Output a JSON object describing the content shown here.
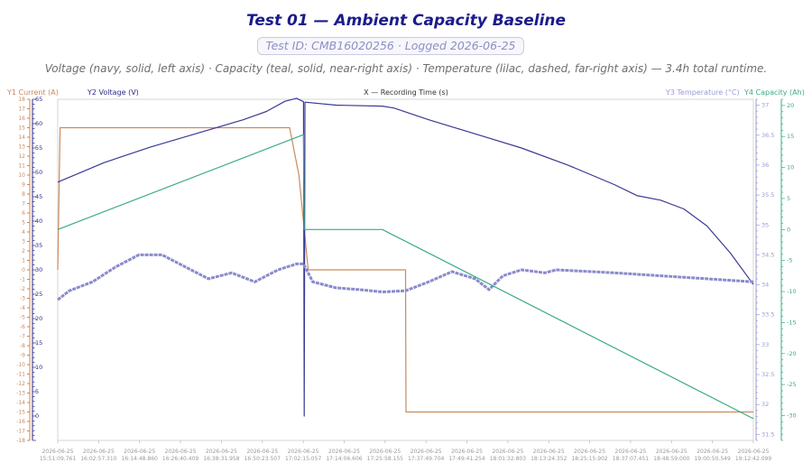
{
  "header": {
    "title": "Test 01 — Ambient Capacity Baseline",
    "test_id_badge": "Test ID: CMB16020256 · Logged 2026-06-25",
    "subtitle": "Voltage (navy, solid, left axis) · Capacity (teal, solid, near-right axis) · Temperature (lilac, dashed, far-right axis) — 3.4h total runtime."
  },
  "chart_data": {
    "type": "line",
    "x_label": "X — Recording Time (s)",
    "x_ticks": [
      "2026-06-25 15:51:09.761",
      "2026-06-25 16:02:57.310",
      "2026-06-25 16:14:48.860",
      "2026-06-25 16:26:40.409",
      "2026-06-25 16:38:31.958",
      "2026-06-25 16:50:23.507",
      "2026-06-25 17:02:15.057",
      "2026-06-25 17:14:06.606",
      "2026-06-25 17:25:58.155",
      "2026-06-25 17:37:49.704",
      "2026-06-25 17:49:41.254",
      "2026-06-25 18:01:32.803",
      "2026-06-25 18:13:24.352",
      "2026-06-25 18:25:15.902",
      "2026-06-25 18:37:07.451",
      "2026-06-25 18:48:59.000",
      "2026-06-25 19:00:50.549",
      "2026-06-25 19:12:42.099"
    ],
    "y1_axis": {
      "label": "Y1 Current (A)",
      "min": -18,
      "max": 18,
      "step": 1,
      "color": "#c98a5e"
    },
    "y2_axis": {
      "label": "Y2 Voltage (V)",
      "min": -5,
      "max": 65,
      "ticks": [
        0,
        5,
        10,
        15,
        20,
        25,
        30,
        35,
        40,
        45,
        50,
        55,
        60,
        65
      ],
      "color": "#2b2b8c"
    },
    "y3_axis": {
      "label": "Y3 Temperature (°C)",
      "min": 31.4,
      "max": 37.1,
      "ticks": [
        31.5,
        32,
        32.5,
        33,
        33.5,
        34,
        34.5,
        35,
        35.5,
        36,
        36.5,
        37
      ],
      "color": "#9a9ad6"
    },
    "y4_axis": {
      "label": "Y4 Capacity (Ah)",
      "min": -34,
      "max": 21,
      "ticks": [
        -30,
        -25,
        -20,
        -15,
        -10,
        -5,
        0,
        5,
        10,
        15,
        20
      ],
      "color": "#3daa86"
    },
    "series": [
      {
        "name": "Y1 Current (A)",
        "axis": "y1",
        "color": "#c98a5e",
        "points": [
          [
            0,
            0
          ],
          [
            1,
            15
          ],
          [
            100,
            15
          ],
          [
            104,
            10
          ],
          [
            108,
            0
          ],
          [
            150,
            0
          ],
          [
            150.2,
            -15
          ],
          [
            300,
            -15
          ]
        ]
      },
      {
        "name": "Y2 Voltage (V)",
        "axis": "y2",
        "color": "#3a3a94",
        "points": [
          [
            0,
            48
          ],
          [
            20,
            52
          ],
          [
            40,
            55.2
          ],
          [
            60,
            58
          ],
          [
            80,
            60.8
          ],
          [
            90,
            62.5
          ],
          [
            98,
            64.6
          ],
          [
            103,
            65.2
          ],
          [
            106,
            64.5
          ],
          [
            106.3,
            0
          ],
          [
            106.6,
            64.4
          ],
          [
            120,
            63.8
          ],
          [
            140,
            63.6
          ],
          [
            145,
            63.2
          ],
          [
            160,
            60.8
          ],
          [
            180,
            57.9
          ],
          [
            200,
            55
          ],
          [
            220,
            51.5
          ],
          [
            240,
            47.5
          ],
          [
            250,
            45.2
          ],
          [
            260,
            44.3
          ],
          [
            270,
            42.5
          ],
          [
            280,
            39
          ],
          [
            290,
            33.5
          ],
          [
            300,
            27
          ]
        ]
      },
      {
        "name": "Y3 Temperature (°C)",
        "axis": "y3",
        "color": "#8a8acc",
        "points": [
          [
            0,
            33.75
          ],
          [
            5,
            33.9
          ],
          [
            15,
            34.05
          ],
          [
            25,
            34.3
          ],
          [
            35,
            34.5
          ],
          [
            45,
            34.5
          ],
          [
            55,
            34.3
          ],
          [
            65,
            34.1
          ],
          [
            75,
            34.2
          ],
          [
            85,
            34.05
          ],
          [
            95,
            34.25
          ],
          [
            103,
            34.35
          ],
          [
            106,
            34.35
          ],
          [
            110,
            34.05
          ],
          [
            120,
            33.95
          ],
          [
            130,
            33.92
          ],
          [
            140,
            33.88
          ],
          [
            150,
            33.9
          ],
          [
            160,
            34.05
          ],
          [
            170,
            34.22
          ],
          [
            180,
            34.1
          ],
          [
            186,
            33.92
          ],
          [
            192,
            34.15
          ],
          [
            200,
            34.25
          ],
          [
            210,
            34.2
          ],
          [
            215,
            34.25
          ],
          [
            240,
            34.2
          ],
          [
            260,
            34.15
          ],
          [
            280,
            34.1
          ],
          [
            300,
            34.05
          ]
        ]
      },
      {
        "name": "Y4 Capacity (Ah)",
        "axis": "y4",
        "color": "#3daa86",
        "points": [
          [
            0,
            0
          ],
          [
            106,
            15.3
          ],
          [
            106.3,
            0
          ],
          [
            120,
            0
          ],
          [
            140,
            0
          ],
          [
            300,
            -30.5
          ]
        ]
      }
    ]
  }
}
